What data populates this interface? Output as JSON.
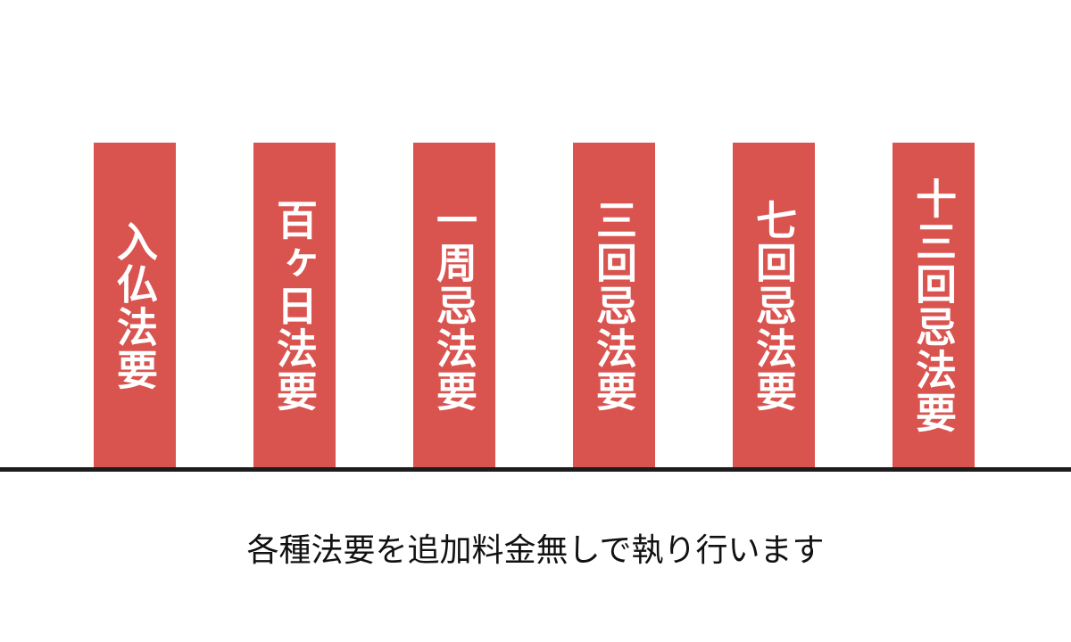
{
  "colors": {
    "background": "#ffffff",
    "banner": "#d9534f",
    "banner_text": "#ffffff",
    "baseline": "#1c1c1c",
    "caption": "#111111"
  },
  "banners": {
    "items": [
      {
        "label": "入仏法要"
      },
      {
        "label": "百ヶ日法要"
      },
      {
        "label": "一周忌法要"
      },
      {
        "label": "三回忌法要"
      },
      {
        "label": "七回忌法要"
      },
      {
        "label": "十三回忌法要"
      }
    ]
  },
  "caption": {
    "text": "各種法要を追加料金無しで執り行います"
  }
}
